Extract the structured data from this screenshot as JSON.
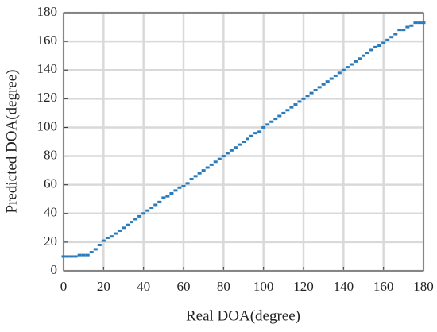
{
  "chart_data": {
    "type": "scatter",
    "xlabel": "Real DOA(degree)",
    "ylabel": "Predicted DOA(degree)",
    "series": [
      {
        "color": "#2b7bba",
        "x": [
          0,
          2,
          4,
          6,
          8,
          10,
          12,
          14,
          16,
          18,
          20,
          22,
          24,
          26,
          28,
          30,
          32,
          34,
          36,
          38,
          40,
          42,
          44,
          46,
          48,
          50,
          52,
          54,
          56,
          58,
          60,
          62,
          64,
          66,
          68,
          70,
          72,
          74,
          76,
          78,
          80,
          82,
          84,
          86,
          88,
          90,
          92,
          94,
          96,
          98,
          100,
          102,
          104,
          106,
          108,
          110,
          112,
          114,
          116,
          118,
          120,
          122,
          124,
          126,
          128,
          130,
          132,
          134,
          136,
          138,
          140,
          142,
          144,
          146,
          148,
          150,
          152,
          154,
          156,
          158,
          160,
          162,
          164,
          166,
          168,
          170,
          172,
          174,
          176,
          178,
          180
        ],
        "values": [
          10,
          10,
          10,
          10,
          11,
          11,
          11,
          13,
          15,
          18,
          21,
          23,
          24,
          26,
          28,
          30,
          32,
          34,
          36,
          38,
          40,
          42,
          44,
          46,
          48,
          51,
          52,
          54,
          56,
          58,
          59,
          61,
          64,
          66,
          68,
          70,
          72,
          74,
          76,
          78,
          80,
          82,
          84,
          86,
          88,
          90,
          92,
          94,
          96,
          97,
          100,
          102,
          104,
          106,
          108,
          110,
          112,
          114,
          116,
          118,
          120,
          122,
          124,
          126,
          128,
          130,
          132,
          134,
          136,
          138,
          140,
          142,
          144,
          146,
          148,
          150,
          152,
          154,
          156,
          157,
          159,
          161,
          163,
          165,
          168,
          168,
          170,
          171,
          173,
          173,
          173
        ]
      }
    ],
    "xlim": [
      0,
      180
    ],
    "ylim": [
      0,
      180
    ],
    "xticks": [
      0,
      20,
      40,
      60,
      80,
      100,
      120,
      140,
      160,
      180
    ],
    "yticks": [
      0,
      20,
      40,
      60,
      80,
      100,
      120,
      140,
      160,
      180
    ],
    "grid": true
  }
}
